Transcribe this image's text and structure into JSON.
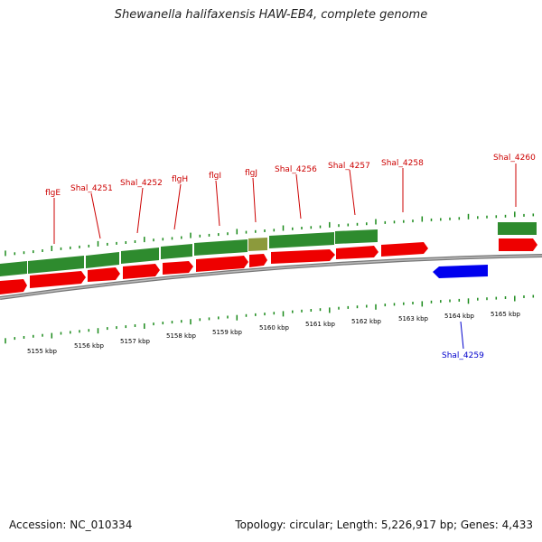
{
  "title": "Shewanella halifaxensis HAW-EB4, complete genome",
  "accession": "Accession: NC_010334",
  "topology": "Topology: circular; Length: 5,226,917 bp; Genes: 4,433",
  "colors": {
    "forward_cds": "#2e8b2e",
    "reverse_cds": "#ee0000",
    "blue_feature": "#0000ee",
    "backbone": "#888888"
  },
  "gene_labels_top": [
    "flgE",
    "Shal_4251",
    "Shal_4252",
    "flgH",
    "flgI",
    "flgJ",
    "Shal_4256",
    "Shal_4257",
    "Shal_4258",
    "Shal_4260"
  ],
  "gene_labels_bottom": [
    "Shal_4259"
  ],
  "kbp_labels": [
    "5155 kbp",
    "5156 kbp",
    "5157 kbp",
    "5158 kbp",
    "5159 kbp",
    "5160 kbp",
    "5161 kbp",
    "5162 kbp",
    "5163 kbp",
    "5164 kbp",
    "5165 kbp"
  ]
}
